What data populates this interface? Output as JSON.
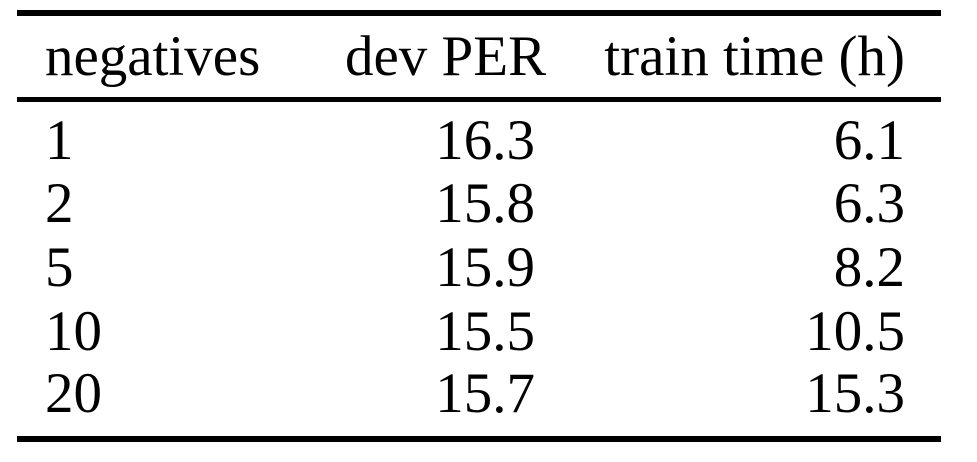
{
  "table": {
    "headers": [
      "negatives",
      "dev PER",
      "train time (h)"
    ],
    "rows": [
      [
        "1",
        "16.3",
        "6.1"
      ],
      [
        "2",
        "15.8",
        "6.3"
      ],
      [
        "5",
        "15.9",
        "8.2"
      ],
      [
        "10",
        "15.5",
        "10.5"
      ],
      [
        "20",
        "15.7",
        "15.3"
      ]
    ]
  },
  "chart_data": {
    "type": "table",
    "title": "",
    "columns": [
      "negatives",
      "dev PER",
      "train time (h)"
    ],
    "rows": [
      [
        1,
        16.3,
        6.1
      ],
      [
        2,
        15.8,
        6.3
      ],
      [
        5,
        15.9,
        8.2
      ],
      [
        10,
        15.5,
        10.5
      ],
      [
        20,
        15.7,
        15.3
      ]
    ]
  },
  "colors": {
    "text": "#000000",
    "rule": "#000000",
    "background": "#ffffff"
  }
}
